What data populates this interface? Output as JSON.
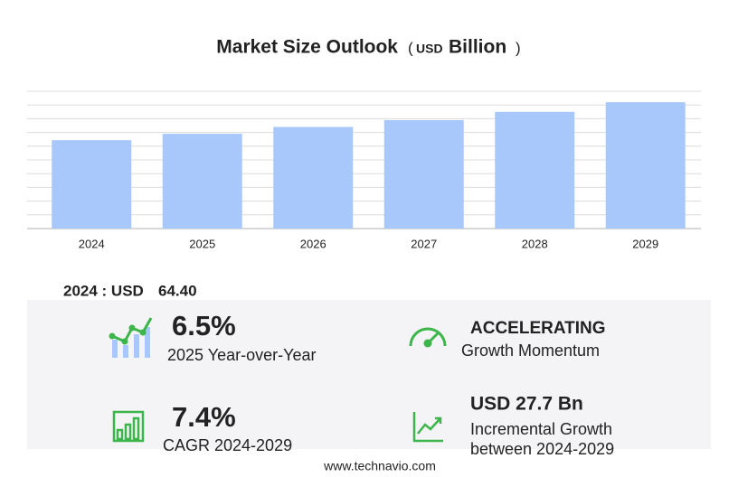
{
  "chart_data": {
    "type": "bar",
    "title": "Market Size Outlook",
    "unit": [
      "(",
      "USD",
      "Billion",
      ")"
    ],
    "categories": [
      "2024",
      "2025",
      "2026",
      "2027",
      "2028",
      "2029"
    ],
    "values": [
      64.4,
      69,
      74,
      79,
      85,
      92
    ],
    "color": "#a8c8fb",
    "ylim": [
      0,
      100
    ],
    "yticks": [
      0,
      10,
      20,
      30,
      40,
      50,
      60,
      70,
      80,
      90,
      100
    ],
    "grid": true
  },
  "summary": {
    "base_label": "2024 : USD",
    "base_value": "64.40",
    "stats": [
      {
        "value": "6.5%",
        "caption": "2025 Year-over-Year"
      },
      {
        "value": "ACCELERATING",
        "caption": "Growth Momentum"
      },
      {
        "value": "7.4%",
        "caption": "CAGR 2024-2029"
      },
      {
        "value": "USD 27.7 Bn",
        "caption": "Incremental Growth",
        "caption2": "between 2024-2029"
      }
    ]
  },
  "footer": "www.technavio.com"
}
